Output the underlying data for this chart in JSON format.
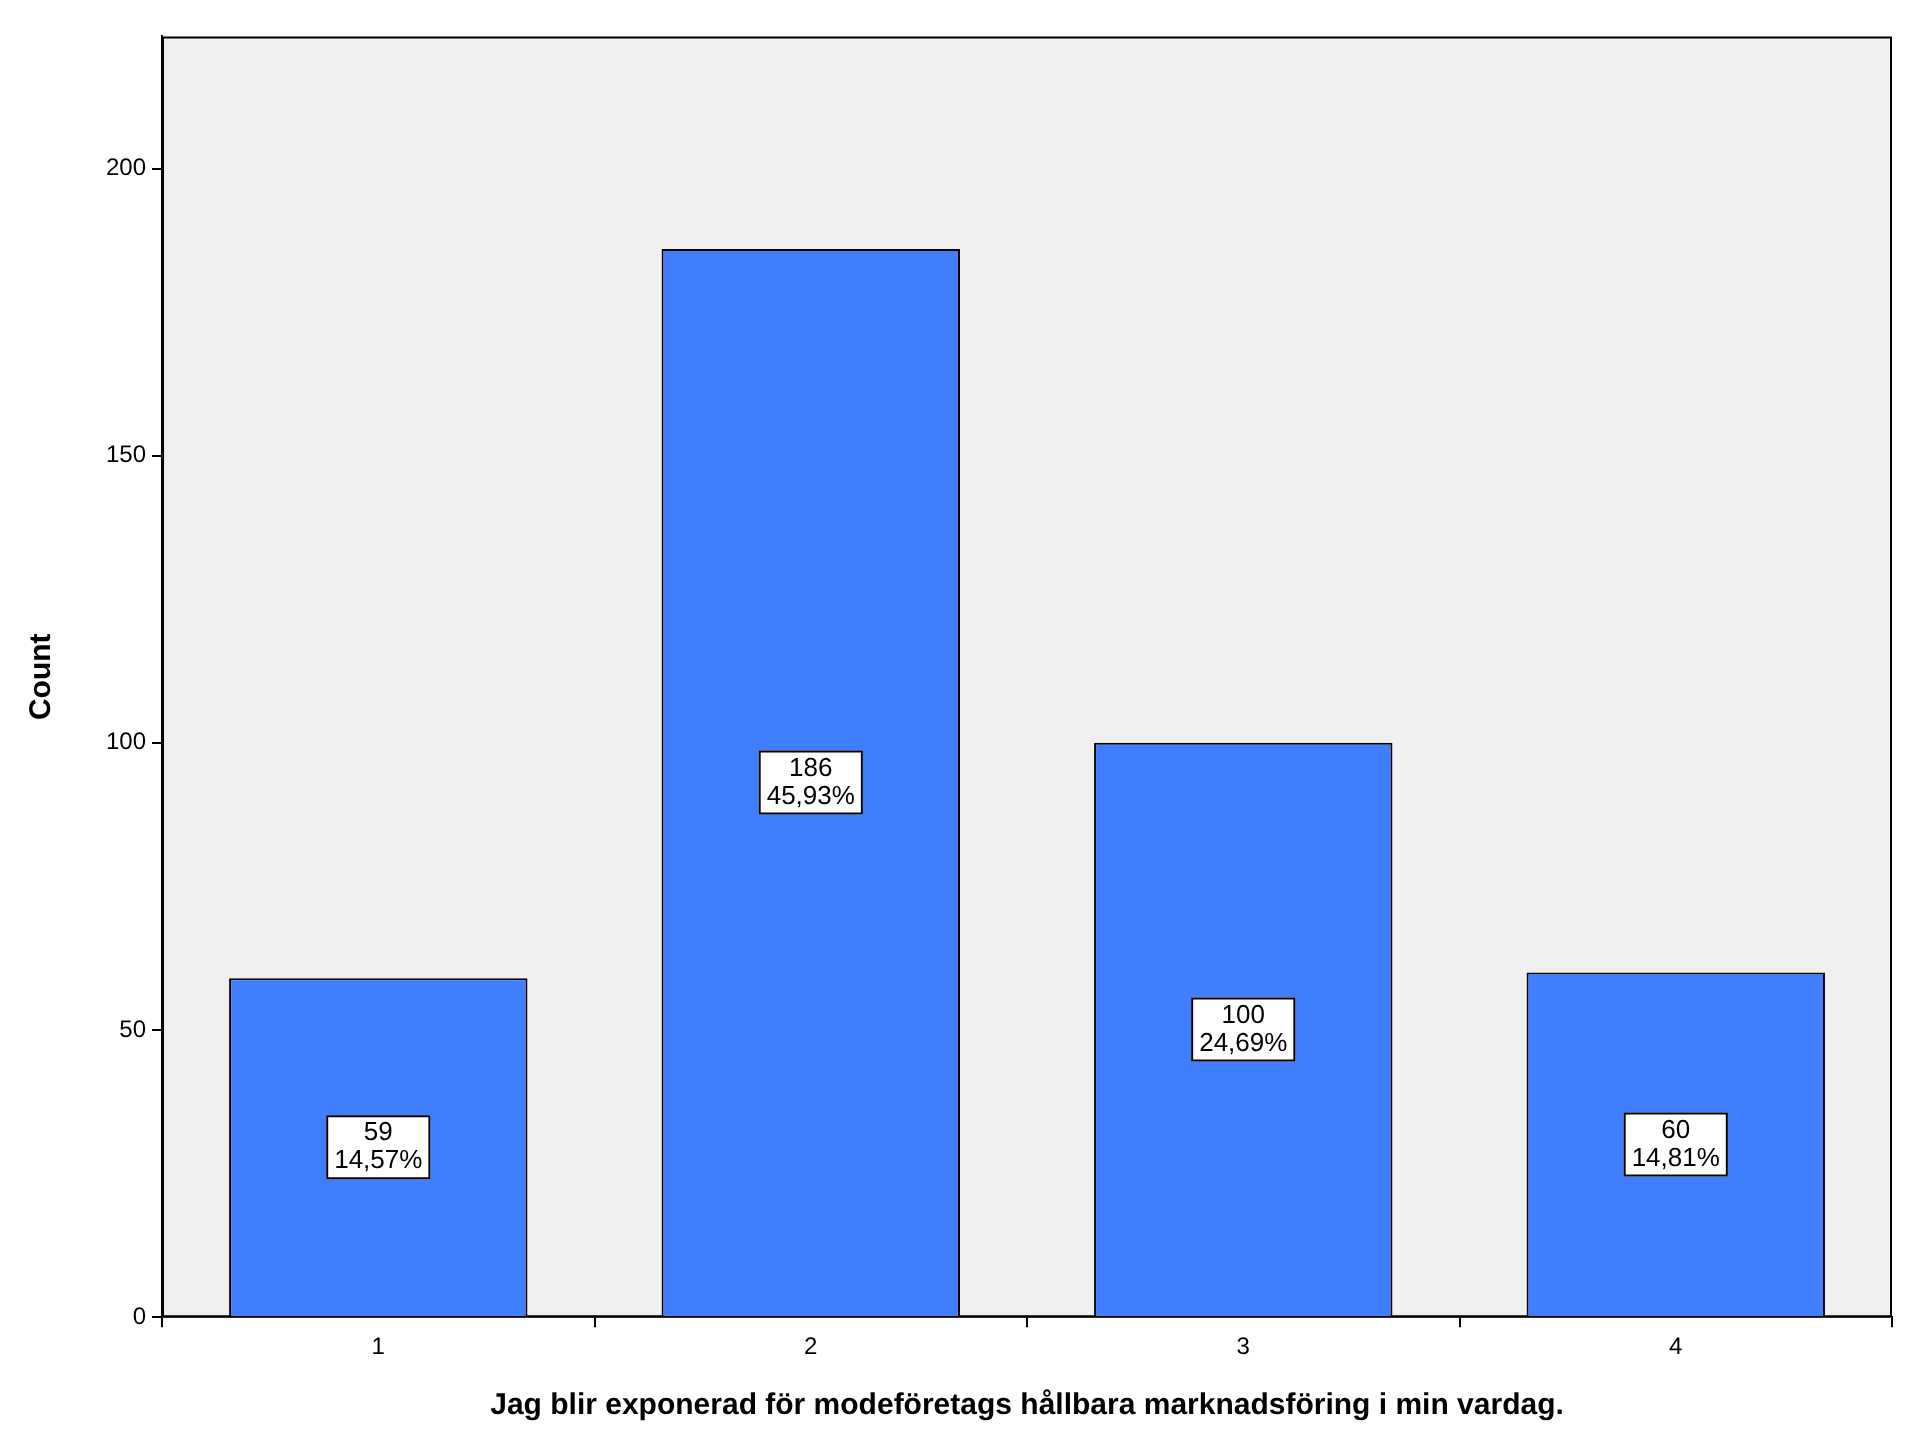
{
  "chart_data": {
    "type": "bar",
    "xlabel": "Jag blir exponerad för modeföretags hållbara marknadsföring i min vardag.",
    "ylabel": "Count",
    "categories": [
      "1",
      "2",
      "3",
      "4"
    ],
    "values": [
      59,
      186,
      100,
      60
    ],
    "value_labels": [
      "59\n14,57%",
      "186\n45,93%",
      "100\n24,69%",
      "60\n14,81%"
    ],
    "color": "#3f7fff",
    "ylim": [
      0,
      223
    ],
    "yticks": [
      0,
      50,
      100,
      150,
      200
    ],
    "grid": false,
    "legend": false
  }
}
